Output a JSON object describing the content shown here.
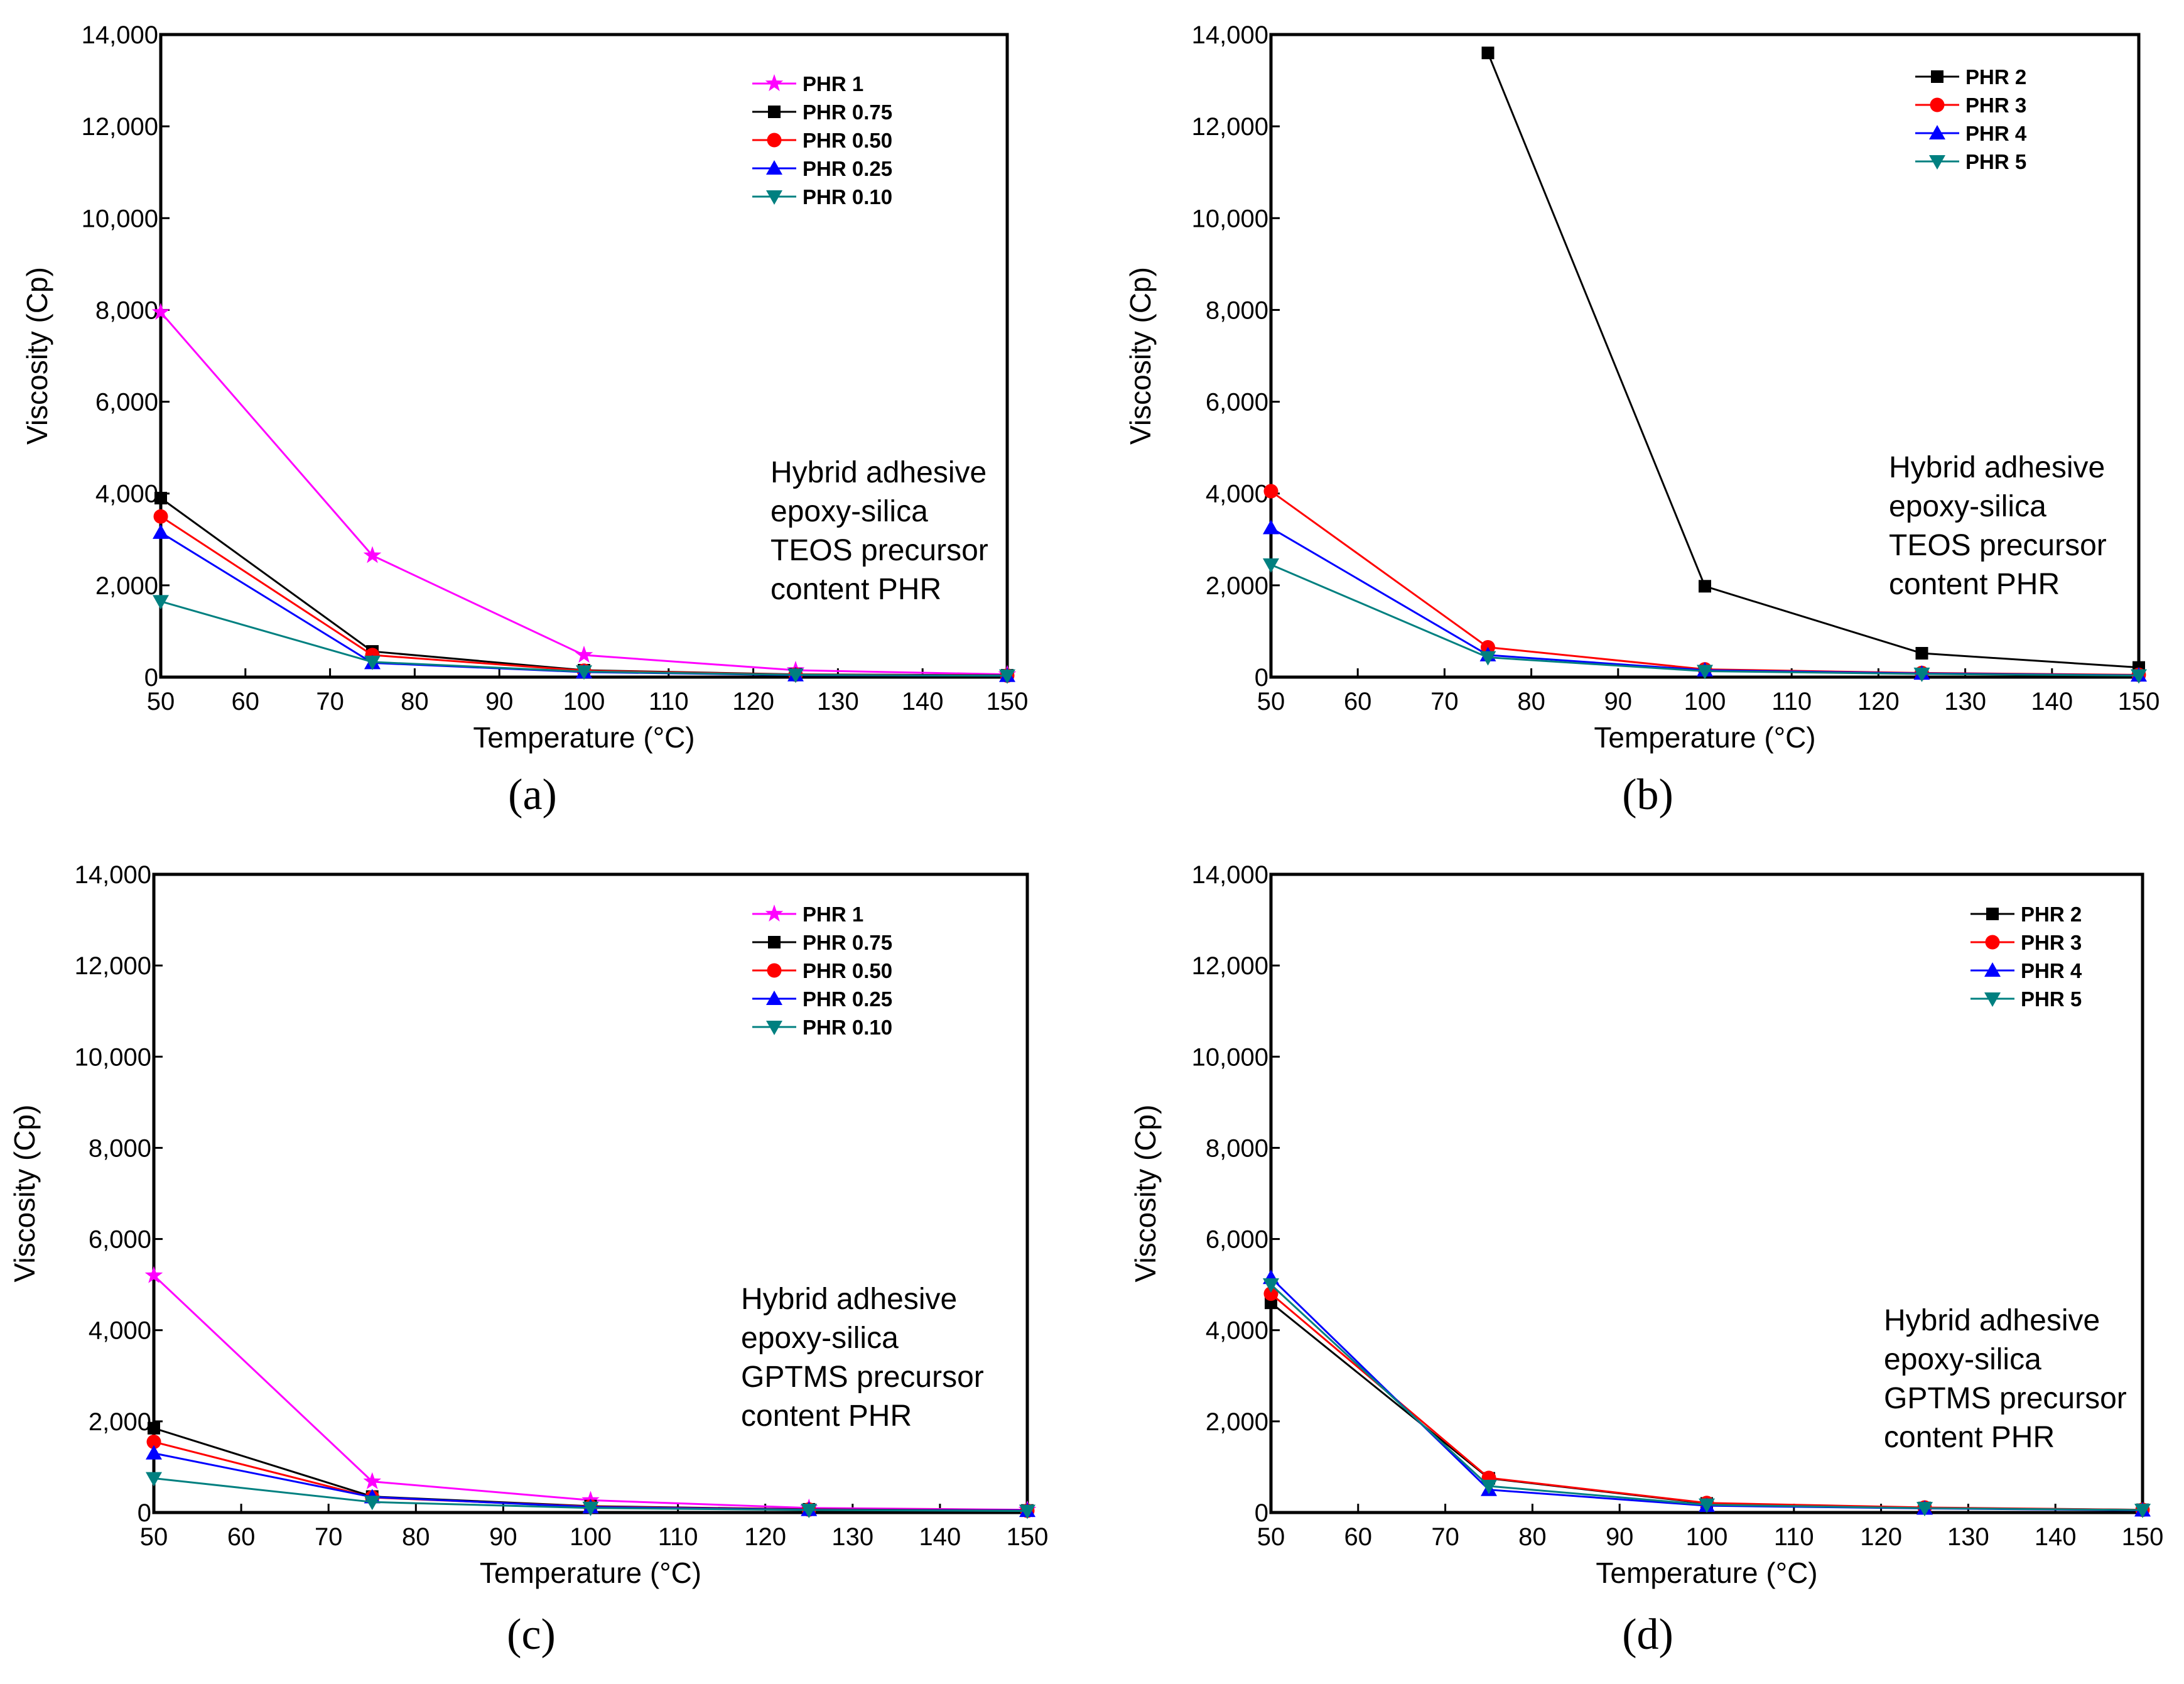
{
  "chart_data": [
    {
      "panel": "a",
      "type": "line",
      "caption": "(a)",
      "xlabel": "Temperature (°C)",
      "ylabel": "Viscosity (Cp)",
      "xlim": [
        50,
        150
      ],
      "ylim": [
        0,
        14000
      ],
      "xticks": [
        "50",
        "60",
        "70",
        "80",
        "90",
        "100",
        "110",
        "120",
        "130",
        "140",
        "150"
      ],
      "yticks": [
        "0",
        "2,000",
        "4,000",
        "6,000",
        "8,000",
        "10,000",
        "12,000",
        "14,000"
      ],
      "legend_position": "top-right",
      "annotation": [
        "Hybrid adhesive",
        "epoxy-silica",
        "TEOS precursor",
        "content PHR"
      ],
      "x": [
        50,
        75,
        100,
        125,
        150
      ],
      "series": [
        {
          "name": "PHR 1",
          "color": "#ff00ff",
          "marker": "star",
          "values": [
            7950,
            2650,
            480,
            150,
            60
          ]
        },
        {
          "name": "PHR 0.75",
          "color": "#000000",
          "marker": "square",
          "values": [
            3900,
            560,
            150,
            60,
            40
          ]
        },
        {
          "name": "PHR 0.50",
          "color": "#ff0000",
          "marker": "circle",
          "values": [
            3500,
            480,
            140,
            55,
            35
          ]
        },
        {
          "name": "PHR 0.25",
          "color": "#0000ff",
          "marker": "triangle-up",
          "values": [
            3150,
            310,
            110,
            45,
            30
          ]
        },
        {
          "name": "PHR 0.10",
          "color": "#008080",
          "marker": "triangle-down",
          "values": [
            1650,
            330,
            120,
            50,
            30
          ]
        }
      ]
    },
    {
      "panel": "b",
      "type": "line",
      "caption": "(b)",
      "xlabel": "Temperature (°C)",
      "ylabel": "Viscosity (Cp)",
      "xlim": [
        50,
        150
      ],
      "ylim": [
        0,
        14000
      ],
      "xticks": [
        "50",
        "60",
        "70",
        "80",
        "90",
        "100",
        "110",
        "120",
        "130",
        "140",
        "150"
      ],
      "yticks": [
        "0",
        "2,000",
        "4,000",
        "6,000",
        "8,000",
        "10,000",
        "12,000",
        "14,000"
      ],
      "legend_position": "top-right",
      "annotation": [
        "Hybrid adhesive",
        "epoxy-silica",
        "TEOS precursor",
        "content PHR"
      ],
      "x": [
        50,
        75,
        100,
        125,
        150
      ],
      "series": [
        {
          "name": "PHR 2",
          "color": "#000000",
          "marker": "square",
          "values": [
            null,
            13600,
            1980,
            520,
            210
          ]
        },
        {
          "name": "PHR 3",
          "color": "#ff0000",
          "marker": "circle",
          "values": [
            4050,
            650,
            170,
            90,
            50
          ]
        },
        {
          "name": "PHR 4",
          "color": "#0000ff",
          "marker": "triangle-up",
          "values": [
            3250,
            480,
            150,
            80,
            40
          ]
        },
        {
          "name": "PHR 5",
          "color": "#008080",
          "marker": "triangle-down",
          "values": [
            2450,
            430,
            130,
            70,
            35
          ]
        }
      ]
    },
    {
      "panel": "c",
      "type": "line",
      "caption": "(c)",
      "xlabel": "Temperature (°C)",
      "ylabel": "Viscosity (Cp)",
      "xlim": [
        50,
        150
      ],
      "ylim": [
        0,
        14000
      ],
      "xticks": [
        "50",
        "60",
        "70",
        "80",
        "90",
        "100",
        "110",
        "120",
        "130",
        "140",
        "150"
      ],
      "yticks": [
        "0",
        "2,000",
        "4,000",
        "6,000",
        "8,000",
        "10,000",
        "12,000",
        "14,000"
      ],
      "legend_position": "top-right",
      "annotation": [
        "Hybrid adhesive",
        "epoxy-silica",
        "GPTMS precursor",
        "content PHR"
      ],
      "x": [
        50,
        75,
        100,
        125,
        150
      ],
      "series": [
        {
          "name": "PHR 1",
          "color": "#ff00ff",
          "marker": "star",
          "values": [
            5200,
            680,
            270,
            100,
            60
          ]
        },
        {
          "name": "PHR 0.75",
          "color": "#000000",
          "marker": "square",
          "values": [
            1850,
            350,
            140,
            70,
            45
          ]
        },
        {
          "name": "PHR 0.50",
          "color": "#ff0000",
          "marker": "circle",
          "values": [
            1550,
            330,
            130,
            65,
            40
          ]
        },
        {
          "name": "PHR 0.25",
          "color": "#0000ff",
          "marker": "triangle-up",
          "values": [
            1300,
            340,
            120,
            60,
            40
          ]
        },
        {
          "name": "PHR 0.10",
          "color": "#008080",
          "marker": "triangle-down",
          "values": [
            750,
            230,
            100,
            55,
            35
          ]
        }
      ]
    },
    {
      "panel": "d",
      "type": "line",
      "caption": "(d)",
      "xlabel": "Temperature (°C)",
      "ylabel": "Viscosity (Cp)",
      "xlim": [
        50,
        150
      ],
      "ylim": [
        0,
        14000
      ],
      "xticks": [
        "50",
        "60",
        "70",
        "80",
        "90",
        "100",
        "110",
        "120",
        "130",
        "140",
        "150"
      ],
      "yticks": [
        "0",
        "2,000",
        "4,000",
        "6,000",
        "8,000",
        "10,000",
        "12,000",
        "14,000"
      ],
      "legend_position": "top-right",
      "annotation": [
        "Hybrid adhesive",
        "epoxy-silica",
        "GPTMS precursor",
        "content PHR"
      ],
      "x": [
        50,
        75,
        100,
        125,
        150
      ],
      "series": [
        {
          "name": "PHR 2",
          "color": "#000000",
          "marker": "square",
          "values": [
            4600,
            750,
            200,
            100,
            60
          ]
        },
        {
          "name": "PHR 3",
          "color": "#ff0000",
          "marker": "circle",
          "values": [
            4800,
            760,
            210,
            110,
            60
          ]
        },
        {
          "name": "PHR 4",
          "color": "#0000ff",
          "marker": "triangle-up",
          "values": [
            5150,
            500,
            150,
            90,
            50
          ]
        },
        {
          "name": "PHR 5",
          "color": "#008080",
          "marker": "triangle-down",
          "values": [
            5000,
            580,
            170,
            95,
            55
          ]
        }
      ]
    }
  ]
}
